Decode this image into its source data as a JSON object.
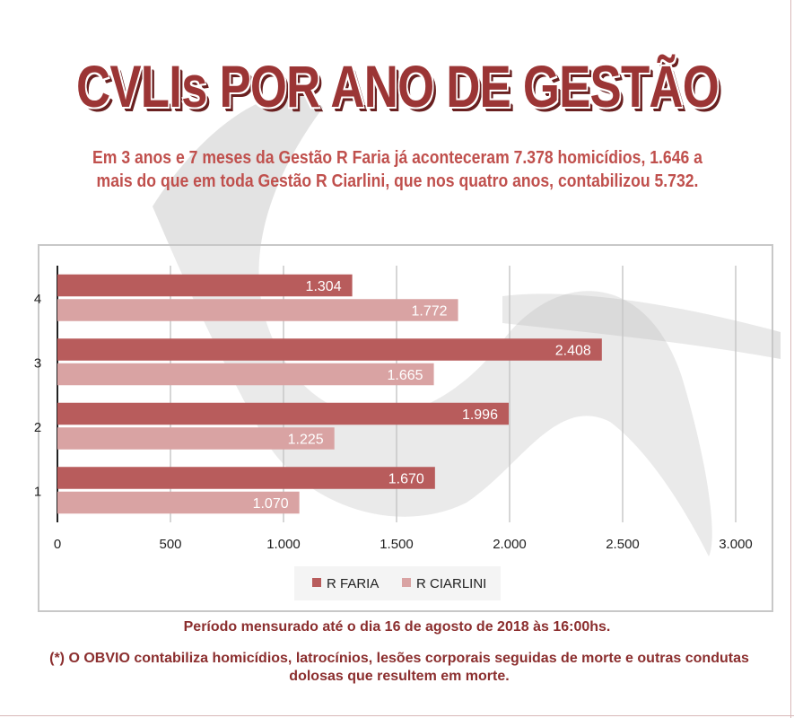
{
  "title": "CVLIs POR ANO DE GESTÃO",
  "subtitle": {
    "line1": "Em 3 anos e 7 meses da Gestão R Faria já aconteceram 7.378 homicídios, 1.646 a",
    "line2": "mais do que em toda Gestão R Ciarlini, que nos quatro anos, contabilizou 5.732."
  },
  "chart_data": {
    "type": "bar",
    "orientation": "horizontal",
    "categories": [
      "1",
      "2",
      "3",
      "4"
    ],
    "series": [
      {
        "name": "R FARIA",
        "color": "#b85c5c",
        "values": [
          1670,
          1996,
          2408,
          1304
        ],
        "labels": [
          "1.670",
          "1.996",
          "2.408",
          "1.304"
        ]
      },
      {
        "name": "R CIARLINI",
        "color": "#d9a3a3",
        "values": [
          1070,
          1225,
          1665,
          1772
        ],
        "labels": [
          "1.070",
          "1.225",
          "1.665",
          "1.772"
        ]
      }
    ],
    "xlim": [
      0,
      3000
    ],
    "xticks": [
      0,
      500,
      1000,
      1500,
      2000,
      2500,
      3000
    ],
    "xtick_labels": [
      "0",
      "500",
      "1.000",
      "1.500",
      "2.000",
      "2.500",
      "3.000"
    ],
    "grid": true,
    "legend": "bottom-center"
  },
  "footer": {
    "period": "Período mensurado até o dia 16 de agosto de 2018 às 16:00hs.",
    "note_prefix": "(*) O OBVIO",
    "note_text": " contabiliza homicídios, latrocínios, lesões corporais seguidas de morte e outras condutas dolosas que resultem em morte."
  }
}
